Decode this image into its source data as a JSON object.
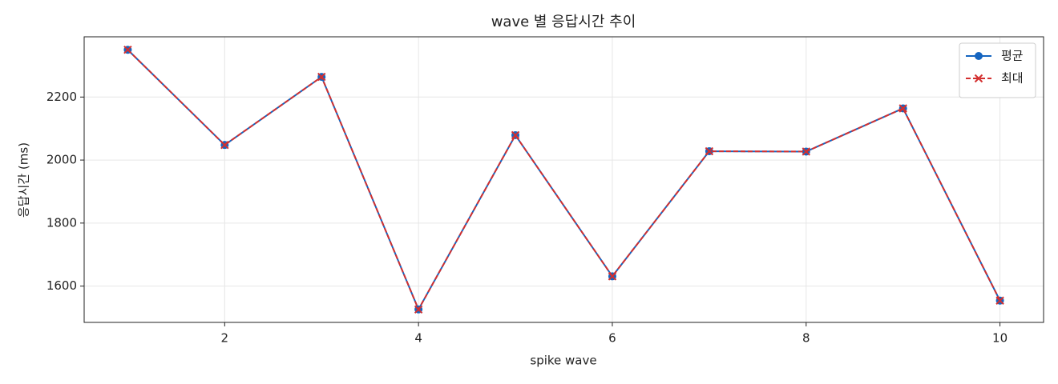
{
  "chart_data": {
    "type": "line",
    "title": "wave 별 응답시간 추이",
    "xlabel": "spike wave",
    "ylabel": "응답시간 (ms)",
    "x": [
      1,
      2,
      3,
      4,
      5,
      6,
      7,
      8,
      9,
      10
    ],
    "series": [
      {
        "name": "평균",
        "color": "#1565c0",
        "marker": "o",
        "linestyle": "solid",
        "values": [
          2350,
          2048,
          2264,
          1526,
          2079,
          1631,
          2028,
          2027,
          2164,
          1554
        ]
      },
      {
        "name": "최대",
        "color": "#d32f2f",
        "marker": "x",
        "linestyle": "dashed",
        "values": [
          2350,
          2048,
          2264,
          1526,
          2079,
          1631,
          2028,
          2027,
          2164,
          1554
        ]
      }
    ],
    "xlim": [
      0.55,
      10.45
    ],
    "xticks": [
      2,
      4,
      6,
      8,
      10
    ],
    "ylim": [
      1484.8,
      2391.2
    ],
    "yticks": [
      1600,
      1800,
      2000,
      2200
    ],
    "grid": true,
    "legend": "upper right"
  }
}
